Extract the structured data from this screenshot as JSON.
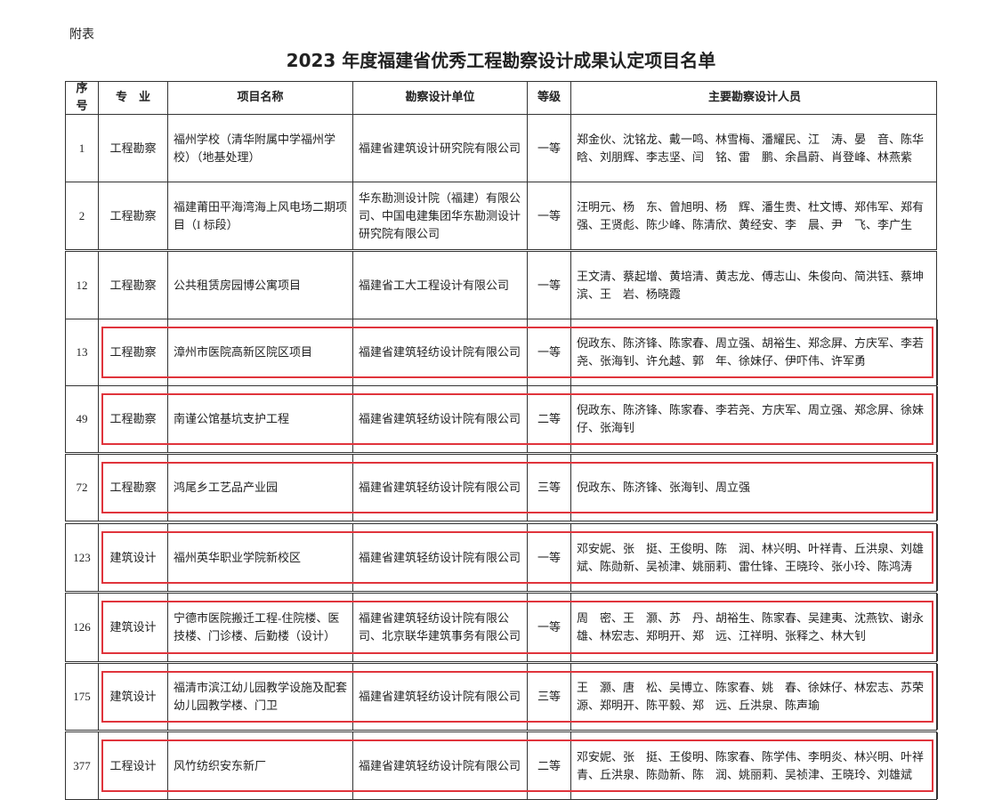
{
  "header": {
    "note": "附表",
    "title": "2023 年度福建省优秀工程勘察设计成果认定项目名单"
  },
  "table": {
    "columns": [
      "序号",
      "专　业",
      "项目名称",
      "勘察设计单位",
      "等级",
      "主要勘察设计人员"
    ],
    "rows": [
      [
        "1",
        "工程勘察",
        "福州学校（清华附属中学福州学校）（地基处理）",
        "福建省建筑设计研究院有限公司",
        "一等",
        "郑金伙、沈铭龙、戴一鸣、林雪梅、潘耀民、江　涛、晏　音、陈华晗、刘朋辉、李志坚、闫　铭、雷　鹏、余昌蔚、肖登峰、林燕紫"
      ],
      [
        "2",
        "工程勘察",
        "福建莆田平海湾海上风电场二期项目（I 标段）",
        "华东勘测设计院（福建）有限公司、中国电建集团华东勘测设计研究院有限公司",
        "一等",
        "汪明元、杨　东、曾旭明、杨　辉、潘生贵、杜文博、郑伟军、郑有强、王贤彪、陈少峰、陈清欣、黄经安、李　晨、尹　飞、李广生"
      ],
      [
        "12",
        "工程勘察",
        "公共租赁房园博公寓项目",
        "福建省工大工程设计有限公司",
        "一等",
        "王文清、蔡起增、黄培清、黄志龙、傅志山、朱俊向、简洪钰、蔡坤滨、王　岩、杨晓霞"
      ],
      [
        "13",
        "工程勘察",
        "漳州市医院高新区院区项目",
        "福建省建筑轻纺设计院有限公司",
        "一等",
        "倪政东、陈济锋、陈家春、周立强、胡裕生、郑念屏、方庆军、李若尧、张海钊、许允越、郭　年、徐妹仔、伊吓伟、许军勇"
      ],
      [
        "49",
        "工程勘察",
        "南谨公馆基坑支护工程",
        "福建省建筑轻纺设计院有限公司",
        "二等",
        "倪政东、陈济锋、陈家春、李若尧、方庆军、周立强、郑念屏、徐妹仔、张海钊"
      ],
      [
        "72",
        "工程勘察",
        "鸿尾乡工艺品产业园",
        "福建省建筑轻纺设计院有限公司",
        "三等",
        "倪政东、陈济锋、张海钊、周立强"
      ],
      [
        "123",
        "建筑设计",
        "福州英华职业学院新校区",
        "福建省建筑轻纺设计院有限公司",
        "一等",
        "邓安妮、张　挺、王俊明、陈　润、林兴明、叶祥青、丘洪泉、刘雄斌、陈勋新、吴祯津、姚丽莉、雷仕锋、王晓玲、张小玲、陈鸿涛"
      ],
      [
        "126",
        "建筑设计",
        "宁德市医院搬迁工程-住院楼、医技楼、门诊楼、后勤楼（设计）",
        "福建省建筑轻纺设计院有限公司、北京联华建筑事务有限公司",
        "一等",
        "周　密、王　灏、苏　丹、胡裕生、陈家春、吴建夷、沈燕钦、谢永雄、林宏志、郑明开、郑　远、江祥明、张释之、林大钊"
      ],
      [
        "175",
        "建筑设计",
        "福清市滨江幼儿园教学设施及配套幼儿园教学楼、门卫",
        "福建省建筑轻纺设计院有限公司",
        "三等",
        "王　灏、唐　松、吴博立、陈家春、姚　春、徐妹仔、林宏志、苏荣源、郑明开、陈平毅、郑　远、丘洪泉、陈声瑜"
      ],
      [
        "377",
        "工程设计",
        "风竹纺织安东新厂",
        "福建省建筑轻纺设计院有限公司",
        "二等",
        "邓安妮、张　挺、王俊明、陈家春、陈学伟、李明炎、林兴明、叶祥青、丘洪泉、陈勋新、陈　润、姚丽莉、吴祯津、王晓玲、刘雄斌"
      ]
    ]
  }
}
